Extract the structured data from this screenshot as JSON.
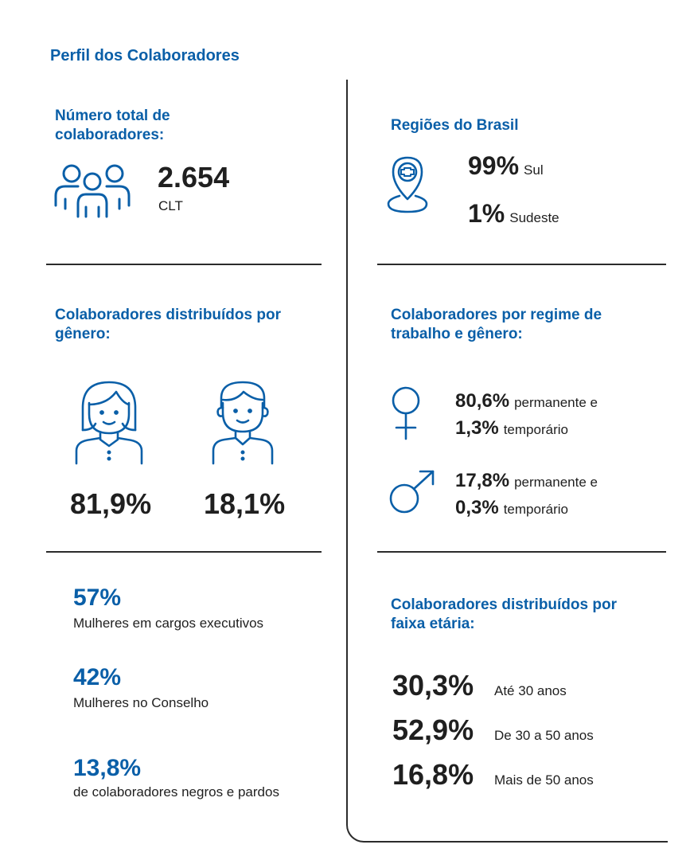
{
  "page_title": "Perfil dos Colaboradores",
  "total": {
    "heading": "Número total de colaboradores:",
    "value": "2.654",
    "sub": "CLT",
    "icon": "people-group-icon"
  },
  "regions": {
    "heading": "Regiões do Brasil",
    "icon": "location-pin-icon",
    "items": [
      {
        "pct": "99%",
        "label": "Sul"
      },
      {
        "pct": "1%",
        "label": "Sudeste"
      }
    ]
  },
  "gender": {
    "heading": "Colaboradores distribuídos por gênero:",
    "female_pct": "81,9%",
    "male_pct": "18,1%",
    "female_icon": "woman-avatar-icon",
    "male_icon": "man-avatar-icon"
  },
  "regime": {
    "heading": "Colaboradores por regime de trabalho e gênero:",
    "female": {
      "icon": "female-symbol-icon",
      "perm_pct": "80,6%",
      "perm_label": "permanente e",
      "temp_pct": "1,3%",
      "temp_label": "temporário"
    },
    "male": {
      "icon": "male-symbol-icon",
      "perm_pct": "17,8%",
      "perm_label": "permanente e",
      "temp_pct": "0,3%",
      "temp_label": "temporário"
    }
  },
  "stats": [
    {
      "value": "57%",
      "label": "Mulheres em cargos executivos"
    },
    {
      "value": "42%",
      "label": "Mulheres no Conselho"
    },
    {
      "value": "13,8%",
      "label": "de colaboradores negros e pardos"
    }
  ],
  "age": {
    "heading": "Colaboradores distribuídos por faixa etária:",
    "items": [
      {
        "pct": "30,3%",
        "label": "Até 30 anos"
      },
      {
        "pct": "52,9%",
        "label": "De 30 a 50 anos"
      },
      {
        "pct": "16,8%",
        "label": "Mais de 50 anos"
      }
    ]
  },
  "colors": {
    "accent": "#0a5fa8",
    "text": "#1f1f1f",
    "rule": "#2b2b2b"
  }
}
